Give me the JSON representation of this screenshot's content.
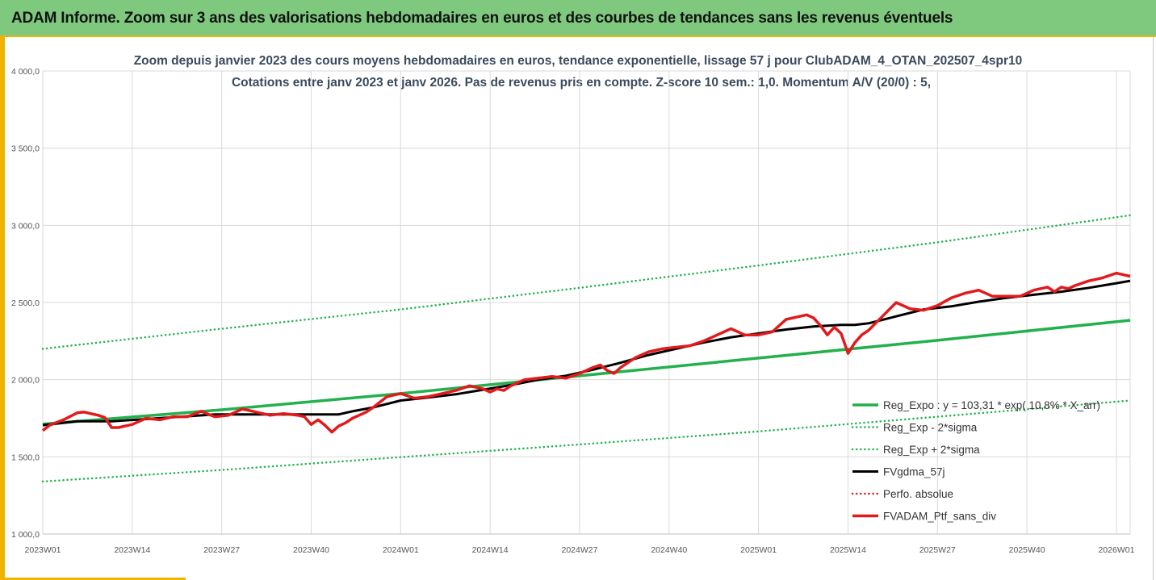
{
  "header": {
    "title": "ADAM Informe. Zoom sur 3 ans des valorisations hebdomadaires en euros et des courbes de tendances sans les revenus éventuels"
  },
  "colors": {
    "header_bg": "#7fc97f",
    "accent": "#f0b400",
    "reg_expo": "#22b14c",
    "sigma": "#22b14c",
    "fvgdma": "#000000",
    "perfo": "#e31a1c",
    "fvadam": "#e31a1c"
  },
  "chart_data": {
    "type": "line",
    "title_lines": [
      "Zoom depuis janvier 2023 des cours moyens hebdomadaires  en euros, tendance exponentielle, lissage 57 j pour ClubADAM_4_OTAN_202507_4spr10",
      "Cotations entre janv 2023 et janv 2026. Pas de revenus pris en compte. Z-score 10 sem.: 1,0. Momentum  A/V (20/0) : 5,"
    ],
    "xlabel": "",
    "ylabel": "",
    "x_range_weeks": [
      0,
      158
    ],
    "ylim": [
      1000,
      4000
    ],
    "grid": true,
    "y_ticks": [
      {
        "value": 1000,
        "label": "1 000,0"
      },
      {
        "value": 1500,
        "label": "1 500,0"
      },
      {
        "value": 2000,
        "label": "2 000,0"
      },
      {
        "value": 2500,
        "label": "2 500,0"
      },
      {
        "value": 3000,
        "label": "3 000,0"
      },
      {
        "value": 3500,
        "label": "3 500,0"
      },
      {
        "value": 4000,
        "label": "4 000,0"
      }
    ],
    "x_ticks": [
      {
        "week": 0,
        "label": "2023W01"
      },
      {
        "week": 13,
        "label": "2023W14"
      },
      {
        "week": 26,
        "label": "2023W27"
      },
      {
        "week": 39,
        "label": "2023W40"
      },
      {
        "week": 52,
        "label": "2024W01"
      },
      {
        "week": 65,
        "label": "2024W14"
      },
      {
        "week": 78,
        "label": "2024W27"
      },
      {
        "week": 91,
        "label": "2024W40"
      },
      {
        "week": 104,
        "label": "2025W01"
      },
      {
        "week": 117,
        "label": "2025W14"
      },
      {
        "week": 130,
        "label": "2025W27"
      },
      {
        "week": 143,
        "label": "2025W40"
      },
      {
        "week": 156,
        "label": "2026W01"
      }
    ],
    "legend_position": "right",
    "series": [
      {
        "name": "Reg_Expo : y = 103,31 * exp( 10,8% * X_arr)",
        "style": "solid-green",
        "x": [
          0,
          26,
          52,
          78,
          104,
          130,
          158
        ],
        "values": [
          1712,
          1805,
          1910,
          2025,
          2140,
          2255,
          2385
        ]
      },
      {
        "name": "Reg_Exp - 2*sigma",
        "style": "dotted-green",
        "x": [
          0,
          26,
          52,
          78,
          104,
          130,
          158
        ],
        "values": [
          1340,
          1415,
          1498,
          1580,
          1665,
          1760,
          1865
        ]
      },
      {
        "name": "Reg_Exp + 2*sigma",
        "style": "dotted-green",
        "x": [
          0,
          26,
          52,
          78,
          104,
          130,
          158
        ],
        "values": [
          2200,
          2330,
          2455,
          2595,
          2740,
          2890,
          3065
        ]
      },
      {
        "name": "FVgdma_57j",
        "style": "solid-black",
        "x": [
          0,
          5,
          10,
          15,
          20,
          25,
          30,
          35,
          40,
          43,
          45,
          48,
          52,
          56,
          60,
          64,
          68,
          72,
          76,
          80,
          84,
          88,
          92,
          96,
          100,
          104,
          108,
          112,
          114,
          116,
          118,
          120,
          124,
          128,
          132,
          136,
          140,
          144,
          148,
          152,
          156,
          158
        ],
        "values": [
          1705,
          1730,
          1730,
          1745,
          1760,
          1775,
          1775,
          1775,
          1775,
          1775,
          1795,
          1820,
          1865,
          1885,
          1905,
          1935,
          1965,
          2000,
          2025,
          2065,
          2110,
          2160,
          2200,
          2240,
          2275,
          2300,
          2325,
          2345,
          2350,
          2355,
          2355,
          2365,
          2410,
          2455,
          2475,
          2505,
          2530,
          2550,
          2570,
          2595,
          2625,
          2640
        ]
      },
      {
        "name": "Perfo. absolue",
        "style": "dotted-red",
        "x": [],
        "values": []
      },
      {
        "name": "FVADAM_Ptf_sans_div",
        "style": "solid-red",
        "x": [
          0,
          1,
          3,
          5,
          6,
          7,
          8,
          9,
          10,
          11,
          12,
          13,
          15,
          17,
          19,
          21,
          23,
          25,
          27,
          29,
          31,
          33,
          35,
          37,
          38,
          39,
          40,
          41,
          42,
          43,
          44,
          45,
          46,
          47,
          48,
          50,
          52,
          54,
          56,
          58,
          60,
          62,
          64,
          65,
          66,
          67,
          68,
          70,
          72,
          74,
          76,
          78,
          80,
          81,
          82,
          83,
          84,
          86,
          88,
          90,
          92,
          94,
          96,
          98,
          100,
          102,
          104,
          106,
          108,
          109,
          110,
          111,
          112,
          113,
          114,
          115,
          116,
          117,
          118,
          119,
          120,
          122,
          124,
          126,
          128,
          130,
          132,
          134,
          136,
          138,
          140,
          142,
          144,
          146,
          147,
          148,
          149,
          150,
          152,
          154,
          156,
          157,
          158
        ],
        "values": [
          1670,
          1705,
          1740,
          1785,
          1790,
          1780,
          1770,
          1755,
          1690,
          1690,
          1700,
          1710,
          1750,
          1740,
          1760,
          1760,
          1795,
          1760,
          1770,
          1810,
          1790,
          1770,
          1780,
          1770,
          1760,
          1710,
          1740,
          1705,
          1660,
          1700,
          1720,
          1750,
          1770,
          1790,
          1820,
          1890,
          1910,
          1880,
          1890,
          1910,
          1930,
          1960,
          1940,
          1920,
          1940,
          1930,
          1960,
          2000,
          2010,
          2020,
          2010,
          2040,
          2080,
          2095,
          2060,
          2040,
          2080,
          2140,
          2180,
          2200,
          2210,
          2220,
          2250,
          2290,
          2330,
          2290,
          2290,
          2310,
          2390,
          2400,
          2410,
          2420,
          2400,
          2350,
          2290,
          2340,
          2300,
          2170,
          2240,
          2290,
          2320,
          2410,
          2500,
          2460,
          2450,
          2480,
          2530,
          2560,
          2580,
          2540,
          2540,
          2540,
          2580,
          2600,
          2570,
          2600,
          2590,
          2610,
          2640,
          2660,
          2690,
          2680,
          2670
        ]
      }
    ]
  }
}
